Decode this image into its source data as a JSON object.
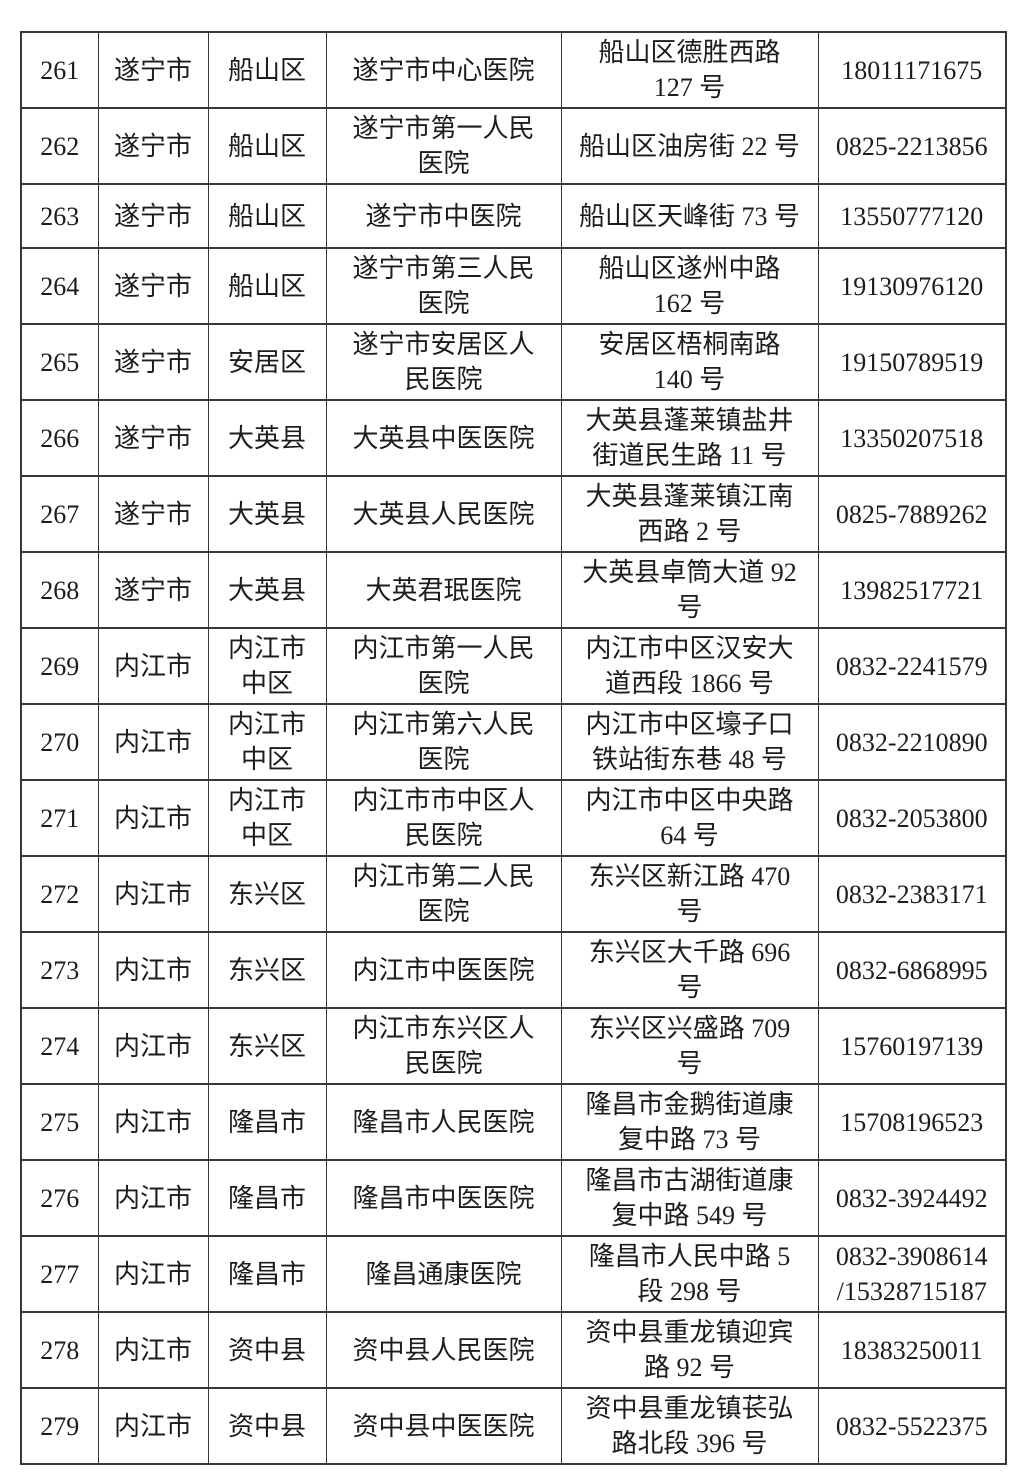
{
  "style": {
    "background_color": "#ffffff",
    "border_color": "#383838",
    "text_color": "#1c1c1c"
  },
  "table": {
    "rows": [
      {
        "no": "261",
        "city": "遂宁市",
        "district": "船山区",
        "hospital": "遂宁市中心医院",
        "address": "船山区德胜西路\n127 号",
        "phone": "18011171675"
      },
      {
        "no": "262",
        "city": "遂宁市",
        "district": "船山区",
        "hospital": "遂宁市第一人民\n医院",
        "address": "船山区油房街 22 号",
        "phone": "0825-2213856"
      },
      {
        "no": "263",
        "city": "遂宁市",
        "district": "船山区",
        "hospital": "遂宁市中医院",
        "address": "船山区天峰街 73 号",
        "phone": "13550777120"
      },
      {
        "no": "264",
        "city": "遂宁市",
        "district": "船山区",
        "hospital": "遂宁市第三人民\n医院",
        "address": "船山区遂州中路\n162 号",
        "phone": "19130976120"
      },
      {
        "no": "265",
        "city": "遂宁市",
        "district": "安居区",
        "hospital": "遂宁市安居区人\n民医院",
        "address": "安居区梧桐南路\n140 号",
        "phone": "19150789519"
      },
      {
        "no": "266",
        "city": "遂宁市",
        "district": "大英县",
        "hospital": "大英县中医医院",
        "address": "大英县蓬莱镇盐井\n街道民生路 11 号",
        "phone": "13350207518"
      },
      {
        "no": "267",
        "city": "遂宁市",
        "district": "大英县",
        "hospital": "大英县人民医院",
        "address": "大英县蓬莱镇江南\n西路 2 号",
        "phone": "0825-7889262"
      },
      {
        "no": "268",
        "city": "遂宁市",
        "district": "大英县",
        "hospital": "大英君珉医院",
        "address": "大英县卓筒大道 92\n号",
        "phone": "13982517721"
      },
      {
        "no": "269",
        "city": "内江市",
        "district": "内江市\n中区",
        "hospital": "内江市第一人民\n医院",
        "address": "内江市中区汉安大\n道西段 1866 号",
        "phone": "0832-2241579"
      },
      {
        "no": "270",
        "city": "内江市",
        "district": "内江市\n中区",
        "hospital": "内江市第六人民\n医院",
        "address": "内江市中区壕子口\n铁站街东巷 48 号",
        "phone": "0832-2210890"
      },
      {
        "no": "271",
        "city": "内江市",
        "district": "内江市\n中区",
        "hospital": "内江市市中区人\n民医院",
        "address": "内江市中区中央路\n64 号",
        "phone": "0832-2053800"
      },
      {
        "no": "272",
        "city": "内江市",
        "district": "东兴区",
        "hospital": "内江市第二人民\n医院",
        "address": "东兴区新江路 470\n号",
        "phone": "0832-2383171"
      },
      {
        "no": "273",
        "city": "内江市",
        "district": "东兴区",
        "hospital": "内江市中医医院",
        "address": "东兴区大千路 696\n号",
        "phone": "0832-6868995"
      },
      {
        "no": "274",
        "city": "内江市",
        "district": "东兴区",
        "hospital": "内江市东兴区人\n民医院",
        "address": "东兴区兴盛路 709\n号",
        "phone": "15760197139"
      },
      {
        "no": "275",
        "city": "内江市",
        "district": "隆昌市",
        "hospital": "隆昌市人民医院",
        "address": "隆昌市金鹅街道康\n复中路 73 号",
        "phone": "15708196523"
      },
      {
        "no": "276",
        "city": "内江市",
        "district": "隆昌市",
        "hospital": "隆昌市中医医院",
        "address": "隆昌市古湖街道康\n复中路 549 号",
        "phone": "0832-3924492"
      },
      {
        "no": "277",
        "city": "内江市",
        "district": "隆昌市",
        "hospital": "隆昌通康医院",
        "address": "隆昌市人民中路 5\n段 298 号",
        "phone": "0832-3908614\n/15328715187"
      },
      {
        "no": "278",
        "city": "内江市",
        "district": "资中县",
        "hospital": "资中县人民医院",
        "address": "资中县重龙镇迎宾\n路 92 号",
        "phone": "18383250011"
      },
      {
        "no": "279",
        "city": "内江市",
        "district": "资中县",
        "hospital": "资中县中医医院",
        "address": "资中县重龙镇苌弘\n路北段 396 号",
        "phone": "0832-5522375"
      }
    ]
  }
}
